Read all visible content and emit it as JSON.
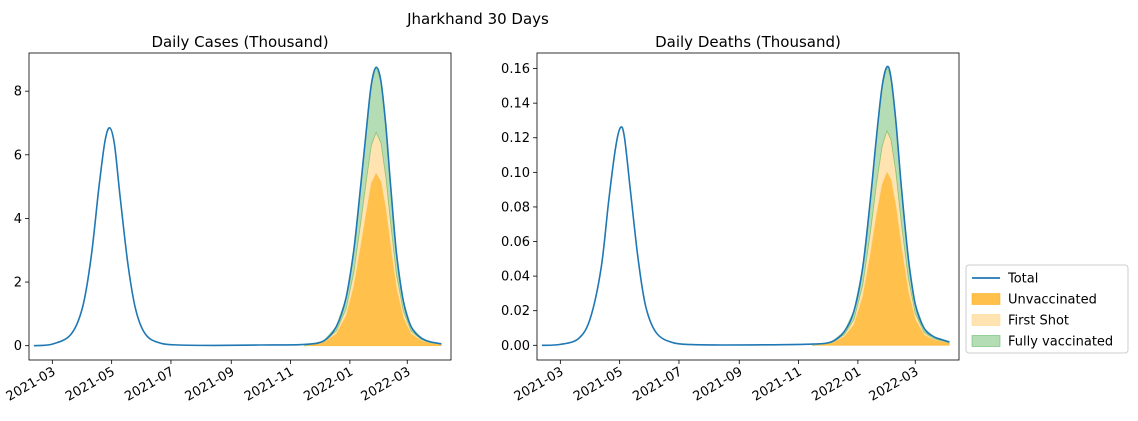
{
  "figure": {
    "suptitle": "Jharkhand 30 Days"
  },
  "colors": {
    "total": "#1f77b4",
    "unvaccinated": "#ffa500",
    "first_shot": "#ffd27f",
    "fully_vaccinated": "#4caf50"
  },
  "legend": {
    "placement": "right of second chart, bottom",
    "items": [
      {
        "label": "Total",
        "kind": "line",
        "color": "#1f77b4"
      },
      {
        "label": "Unvaccinated",
        "kind": "patch",
        "color": "#ffa500"
      },
      {
        "label": "First Shot",
        "kind": "patch",
        "color": "#ffd27f"
      },
      {
        "label": "Fully vaccinated",
        "kind": "patch",
        "color": "#4caf50"
      }
    ]
  },
  "chart_data": [
    {
      "type": "area",
      "title": "Daily Cases (Thousand)",
      "xlabel": "",
      "ylabel": "",
      "x_type": "date",
      "xlim": [
        "2021-02-05",
        "2022-04-15"
      ],
      "ylim": [
        -0.45,
        9.2
      ],
      "xticks": [
        "2021-03",
        "2021-05",
        "2021-07",
        "2021-09",
        "2021-11",
        "2022-01",
        "2022-03"
      ],
      "yticks": [
        0,
        2,
        4,
        6,
        8
      ],
      "ytick_labels": [
        "0",
        "2",
        "4",
        "6",
        "8"
      ],
      "grid": false,
      "series": [
        {
          "name": "Total",
          "kind": "line",
          "x": [
            "2021-02-10",
            "2021-03-01",
            "2021-03-20",
            "2021-04-01",
            "2021-04-10",
            "2021-04-18",
            "2021-04-24",
            "2021-04-29",
            "2021-05-04",
            "2021-05-10",
            "2021-05-18",
            "2021-05-26",
            "2021-06-05",
            "2021-06-20",
            "2021-07-10",
            "2021-08-15",
            "2021-10-01",
            "2021-11-15",
            "2021-12-05",
            "2021-12-18",
            "2021-12-28",
            "2022-01-05",
            "2022-01-12",
            "2022-01-18",
            "2022-01-23",
            "2022-01-28",
            "2022-02-02",
            "2022-02-07",
            "2022-02-12",
            "2022-02-18",
            "2022-02-25",
            "2022-03-05",
            "2022-03-15",
            "2022-03-25",
            "2022-04-05"
          ],
          "y": [
            0.0,
            0.05,
            0.35,
            1.2,
            2.8,
            5.0,
            6.4,
            6.85,
            6.3,
            4.6,
            2.5,
            1.1,
            0.35,
            0.08,
            0.02,
            0.01,
            0.02,
            0.04,
            0.15,
            0.6,
            1.5,
            3.0,
            5.0,
            6.8,
            8.2,
            8.75,
            8.3,
            6.9,
            5.0,
            2.9,
            1.4,
            0.6,
            0.25,
            0.12,
            0.06
          ]
        },
        {
          "name": "Unvaccinated",
          "kind": "area",
          "x": [
            "2021-11-15",
            "2021-12-05",
            "2021-12-18",
            "2021-12-28",
            "2022-01-05",
            "2022-01-12",
            "2022-01-18",
            "2022-01-23",
            "2022-01-28",
            "2022-02-02",
            "2022-02-07",
            "2022-02-12",
            "2022-02-18",
            "2022-02-25",
            "2022-03-05",
            "2022-03-15",
            "2022-03-25",
            "2022-04-05"
          ],
          "y": [
            0.0,
            0.1,
            0.37,
            0.93,
            1.86,
            3.1,
            4.2,
            5.1,
            5.42,
            5.15,
            4.28,
            3.1,
            1.8,
            0.87,
            0.37,
            0.16,
            0.07,
            0.04
          ]
        },
        {
          "name": "First Shot",
          "kind": "area",
          "x": [
            "2021-11-15",
            "2021-12-05",
            "2021-12-18",
            "2021-12-28",
            "2022-01-05",
            "2022-01-12",
            "2022-01-18",
            "2022-01-23",
            "2022-01-28",
            "2022-02-02",
            "2022-02-07",
            "2022-02-12",
            "2022-02-18",
            "2022-02-25",
            "2022-03-05",
            "2022-03-15",
            "2022-03-25",
            "2022-04-05"
          ],
          "y": [
            0.0,
            0.02,
            0.09,
            0.22,
            0.44,
            0.74,
            1.0,
            1.2,
            1.28,
            1.22,
            1.01,
            0.74,
            0.43,
            0.21,
            0.09,
            0.04,
            0.02,
            0.01
          ]
        },
        {
          "name": "Fully vaccinated",
          "kind": "area",
          "x": [
            "2021-11-15",
            "2021-12-05",
            "2021-12-18",
            "2021-12-28",
            "2022-01-05",
            "2022-01-12",
            "2022-01-18",
            "2022-01-23",
            "2022-01-28",
            "2022-02-02",
            "2022-02-07",
            "2022-02-12",
            "2022-02-18",
            "2022-02-25",
            "2022-03-05",
            "2022-03-15",
            "2022-03-25",
            "2022-04-05"
          ],
          "y": [
            0.0,
            0.03,
            0.14,
            0.35,
            0.7,
            1.16,
            1.6,
            1.9,
            2.05,
            1.93,
            1.61,
            1.16,
            0.67,
            0.32,
            0.14,
            0.05,
            0.03,
            0.01
          ]
        }
      ]
    },
    {
      "type": "area",
      "title": "Daily Deaths (Thousand)",
      "xlabel": "",
      "ylabel": "",
      "x_type": "date",
      "xlim": [
        "2021-02-05",
        "2022-04-15"
      ],
      "ylim": [
        -0.0085,
        0.169
      ],
      "xticks": [
        "2021-03",
        "2021-05",
        "2021-07",
        "2021-09",
        "2021-11",
        "2022-01",
        "2022-03"
      ],
      "yticks": [
        0,
        0.02,
        0.04,
        0.06,
        0.08,
        0.1,
        0.12,
        0.14,
        0.16
      ],
      "ytick_labels": [
        "0.00",
        "0.02",
        "0.04",
        "0.06",
        "0.08",
        "0.10",
        "0.12",
        "0.14",
        "0.16"
      ],
      "grid": false,
      "series": [
        {
          "name": "Total",
          "kind": "line",
          "x": [
            "2021-02-10",
            "2021-03-01",
            "2021-03-20",
            "2021-04-01",
            "2021-04-12",
            "2021-04-20",
            "2021-04-27",
            "2021-05-02",
            "2021-05-06",
            "2021-05-12",
            "2021-05-20",
            "2021-05-28",
            "2021-06-08",
            "2021-06-25",
            "2021-07-15",
            "2021-08-15",
            "2021-10-01",
            "2021-11-15",
            "2021-12-05",
            "2021-12-18",
            "2021-12-28",
            "2022-01-06",
            "2022-01-14",
            "2022-01-20",
            "2022-01-26",
            "2022-01-31",
            "2022-02-04",
            "2022-02-09",
            "2022-02-15",
            "2022-02-22",
            "2022-03-01",
            "2022-03-10",
            "2022-03-20",
            "2022-03-30",
            "2022-04-05"
          ],
          "y": [
            0.0,
            0.0005,
            0.004,
            0.016,
            0.045,
            0.085,
            0.115,
            0.126,
            0.12,
            0.09,
            0.05,
            0.022,
            0.007,
            0.0015,
            0.0004,
            0.0002,
            0.0003,
            0.0007,
            0.002,
            0.008,
            0.02,
            0.045,
            0.085,
            0.12,
            0.15,
            0.161,
            0.155,
            0.13,
            0.09,
            0.05,
            0.024,
            0.01,
            0.005,
            0.003,
            0.002
          ]
        },
        {
          "name": "Unvaccinated",
          "kind": "area",
          "x": [
            "2021-11-15",
            "2021-12-05",
            "2021-12-18",
            "2021-12-28",
            "2022-01-06",
            "2022-01-14",
            "2022-01-20",
            "2022-01-26",
            "2022-01-31",
            "2022-02-04",
            "2022-02-09",
            "2022-02-15",
            "2022-02-22",
            "2022-03-01",
            "2022-03-10",
            "2022-03-20",
            "2022-03-30",
            "2022-04-05"
          ],
          "y": [
            0.0,
            0.0012,
            0.005,
            0.012,
            0.028,
            0.053,
            0.075,
            0.093,
            0.1,
            0.096,
            0.081,
            0.056,
            0.031,
            0.015,
            0.006,
            0.003,
            0.002,
            0.001
          ]
        },
        {
          "name": "First Shot",
          "kind": "area",
          "x": [
            "2021-11-15",
            "2021-12-05",
            "2021-12-18",
            "2021-12-28",
            "2022-01-06",
            "2022-01-14",
            "2022-01-20",
            "2022-01-26",
            "2022-01-31",
            "2022-02-04",
            "2022-02-09",
            "2022-02-15",
            "2022-02-22",
            "2022-03-01",
            "2022-03-10",
            "2022-03-20",
            "2022-03-30",
            "2022-04-05"
          ],
          "y": [
            0.0,
            0.0003,
            0.0012,
            0.003,
            0.0067,
            0.0127,
            0.018,
            0.0223,
            0.024,
            0.023,
            0.0194,
            0.0134,
            0.0075,
            0.0036,
            0.0015,
            0.0007,
            0.0004,
            0.0003
          ]
        },
        {
          "name": "Fully vaccinated",
          "kind": "area",
          "x": [
            "2021-11-15",
            "2021-12-05",
            "2021-12-18",
            "2021-12-28",
            "2022-01-06",
            "2022-01-14",
            "2022-01-20",
            "2022-01-26",
            "2022-01-31",
            "2022-02-04",
            "2022-02-09",
            "2022-02-15",
            "2022-02-22",
            "2022-03-01",
            "2022-03-10",
            "2022-03-20",
            "2022-03-30",
            "2022-04-05"
          ],
          "y": [
            0.0,
            0.0005,
            0.0018,
            0.005,
            0.0103,
            0.0193,
            0.027,
            0.0347,
            0.037,
            0.036,
            0.0296,
            0.021,
            0.0115,
            0.0054,
            0.0025,
            0.0013,
            0.0006,
            0.0007
          ]
        }
      ]
    }
  ]
}
